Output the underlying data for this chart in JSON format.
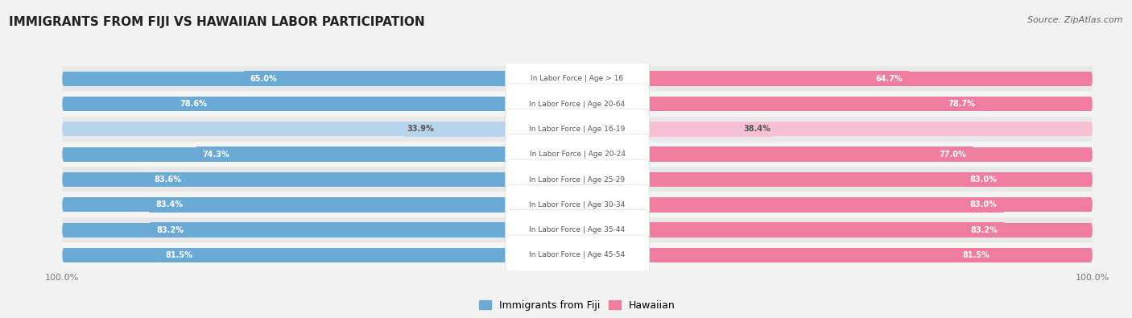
{
  "title": "IMMIGRANTS FROM FIJI VS HAWAIIAN LABOR PARTICIPATION",
  "source": "Source: ZipAtlas.com",
  "categories": [
    "In Labor Force | Age > 16",
    "In Labor Force | Age 20-64",
    "In Labor Force | Age 16-19",
    "In Labor Force | Age 20-24",
    "In Labor Force | Age 25-29",
    "In Labor Force | Age 30-34",
    "In Labor Force | Age 35-44",
    "In Labor Force | Age 45-54"
  ],
  "fiji_values": [
    65.0,
    78.6,
    33.9,
    74.3,
    83.6,
    83.4,
    83.2,
    81.5
  ],
  "hawaii_values": [
    64.7,
    78.7,
    38.4,
    77.0,
    83.0,
    83.0,
    83.2,
    81.5
  ],
  "fiji_color": "#6aaad4",
  "fiji_color_light": "#b8d4ec",
  "hawaii_color": "#f07ca0",
  "hawaii_color_light": "#f8c0d4",
  "max_val": 100.0,
  "bg_color": "#f2f2f2",
  "row_color_even": "#e8e8e8",
  "row_color_odd": "#f5f5f5",
  "label_color_white": "#ffffff",
  "label_color_dark": "#555555",
  "center_label_color": "#555566"
}
